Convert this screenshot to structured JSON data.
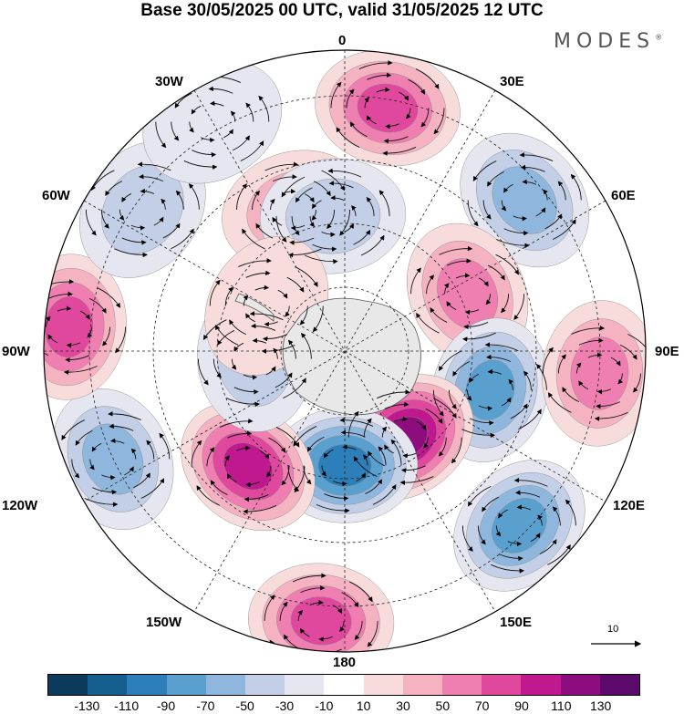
{
  "title": "Base 30/05/2025 00 UTC, valid 31/05/2025 12 UTC",
  "brand": "MODES",
  "brand_mark": "®",
  "longitude_labels": {
    "top": "0",
    "e30": "30E",
    "e60": "60E",
    "e90": "90E",
    "e120": "120E",
    "e150": "150E",
    "bottom": "180",
    "w150": "150W",
    "w120": "120W",
    "w90": "90W",
    "w60": "60W",
    "w30": "30W"
  },
  "reference_vector_label": "10",
  "colorbar": {
    "colors": [
      "#0b3a5a",
      "#155f8e",
      "#2c7fb8",
      "#5aa0cf",
      "#8fb7dd",
      "#c2cfe6",
      "#e6e6f0",
      "#ffffff",
      "#f8dcdc",
      "#f5b3c2",
      "#ef7fb0",
      "#e0489e",
      "#c0198f",
      "#8d0c7e",
      "#5b0a6c"
    ],
    "tick_labels": [
      "-130",
      "-110",
      "-90",
      "-70",
      "-50",
      "-30",
      "-10",
      "10",
      "30",
      "50",
      "70",
      "90",
      "110",
      "130"
    ]
  },
  "anomaly_centers": [
    {
      "lon": 10,
      "colat": 0.82,
      "value": 80
    },
    {
      "lon": 50,
      "colat": 0.78,
      "value": -70
    },
    {
      "lon": 65,
      "colat": 0.45,
      "value": 70
    },
    {
      "lon": 105,
      "colat": 0.5,
      "value": -80
    },
    {
      "lon": 95,
      "colat": 0.85,
      "value": 70
    },
    {
      "lon": 145,
      "colat": 0.35,
      "value": 120
    },
    {
      "lon": 135,
      "colat": 0.82,
      "value": -80
    },
    {
      "lon": 180,
      "colat": 0.38,
      "value": -110
    },
    {
      "lon": 185,
      "colat": 0.9,
      "value": 80
    },
    {
      "lon": -140,
      "colat": 0.5,
      "value": 100
    },
    {
      "lon": -115,
      "colat": 0.85,
      "value": -70
    },
    {
      "lon": -95,
      "colat": 0.3,
      "value": -50
    },
    {
      "lon": -85,
      "colat": 0.92,
      "value": 80
    },
    {
      "lon": -55,
      "colat": 0.82,
      "value": -50
    },
    {
      "lon": -20,
      "colat": 0.5,
      "value": 50
    },
    {
      "lon": -5,
      "colat": 0.45,
      "value": -40
    },
    {
      "lon": -30,
      "colat": 0.88,
      "value": -20
    },
    {
      "lon": -60,
      "colat": 0.3,
      "value": 20
    }
  ]
}
